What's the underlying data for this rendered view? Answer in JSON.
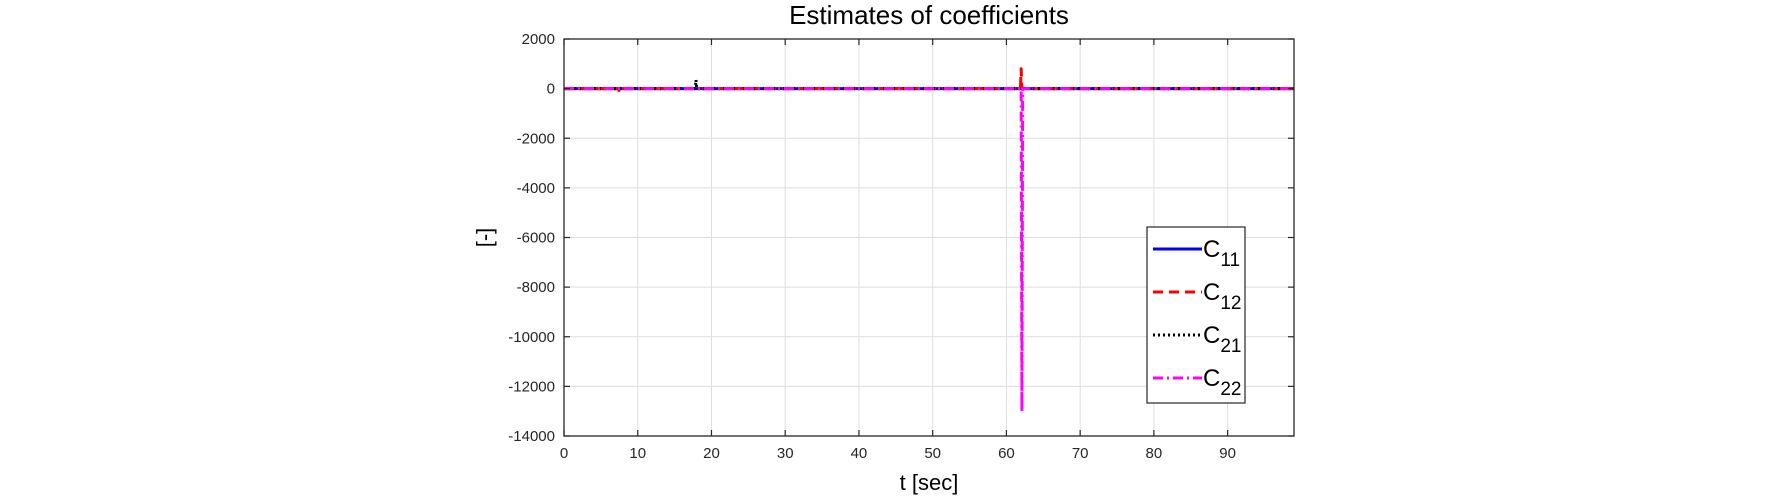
{
  "chart_data": {
    "type": "line",
    "title": "Estimates of coefficients",
    "xlabel": "t [sec]",
    "ylabel": "[-]",
    "xlim": [
      0,
      99
    ],
    "ylim": [
      -14000,
      2000
    ],
    "xticks": [
      0,
      10,
      20,
      30,
      40,
      50,
      60,
      70,
      80,
      90
    ],
    "xtick_labels": [
      "0",
      "10",
      "20",
      "30",
      "40",
      "50",
      "60",
      "70",
      "80",
      "90"
    ],
    "yticks": [
      2000,
      0,
      -2000,
      -4000,
      -6000,
      -8000,
      -10000,
      -12000,
      -14000
    ],
    "ytick_labels": [
      "2000",
      "0",
      "-2000",
      "-4000",
      "-6000",
      "-8000",
      "-10000",
      "-12000",
      "-14000"
    ],
    "grid": true,
    "legend_position": "lower-right",
    "series": [
      {
        "name": "C",
        "subscript": "11",
        "color": "#0000ff",
        "dash": "solid",
        "points": [
          [
            0,
            0
          ],
          [
            62.1,
            0
          ],
          [
            62.15,
            50
          ],
          [
            62.25,
            0
          ],
          [
            99,
            0
          ]
        ]
      },
      {
        "name": "C",
        "subscript": "12",
        "color": "#ff0000",
        "dash": "dashed",
        "points": [
          [
            0,
            0
          ],
          [
            7.4,
            0
          ],
          [
            7.45,
            -80
          ],
          [
            7.5,
            60
          ],
          [
            7.55,
            0
          ],
          [
            61.9,
            0
          ],
          [
            62.0,
            800
          ],
          [
            62.1,
            0
          ],
          [
            99,
            0
          ]
        ]
      },
      {
        "name": "C",
        "subscript": "21",
        "color": "#000000",
        "dash": "dotted",
        "points": [
          [
            0,
            0
          ],
          [
            17.8,
            0
          ],
          [
            17.9,
            350
          ],
          [
            18.0,
            0
          ],
          [
            99,
            0
          ]
        ]
      },
      {
        "name": "C",
        "subscript": "22",
        "color": "#ff00ff",
        "dash": "dashdot",
        "points": [
          [
            0,
            0
          ],
          [
            62.0,
            0
          ],
          [
            62.1,
            -13000
          ],
          [
            62.2,
            0
          ],
          [
            99,
            0
          ]
        ]
      }
    ]
  }
}
